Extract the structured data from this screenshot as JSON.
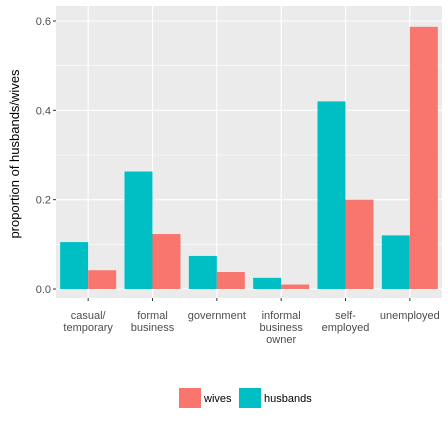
{
  "chart_data": {
    "type": "bar",
    "categories": [
      [
        "casual/",
        "temporary"
      ],
      [
        "formal",
        "business"
      ],
      [
        "government"
      ],
      [
        "informal",
        "business",
        "owner"
      ],
      [
        "self-",
        "employed"
      ],
      [
        "unemployed"
      ]
    ],
    "series": [
      {
        "name": "husbands",
        "values": [
          0.105,
          0.263,
          0.074,
          0.025,
          0.42,
          0.12
        ],
        "color": "#00BFC4"
      },
      {
        "name": "wives",
        "values": [
          0.042,
          0.123,
          0.038,
          0.01,
          0.2,
          0.587
        ],
        "color": "#F8766D"
      }
    ],
    "ylabel": "proportion of husbands/wives",
    "xlabel": "",
    "ylim": [
      0,
      0.62
    ],
    "yticks": [
      0.0,
      0.2,
      0.4,
      0.6
    ],
    "ytick_labels": [
      "0.0",
      "0.2",
      "0.4",
      "0.6"
    ],
    "grid": true,
    "panel_background": "#EBEBEB",
    "legend": {
      "position": "bottom",
      "entries": [
        {
          "label": "wives",
          "color": "#F8766D"
        },
        {
          "label": "husbands",
          "color": "#00BFC4"
        }
      ]
    }
  }
}
